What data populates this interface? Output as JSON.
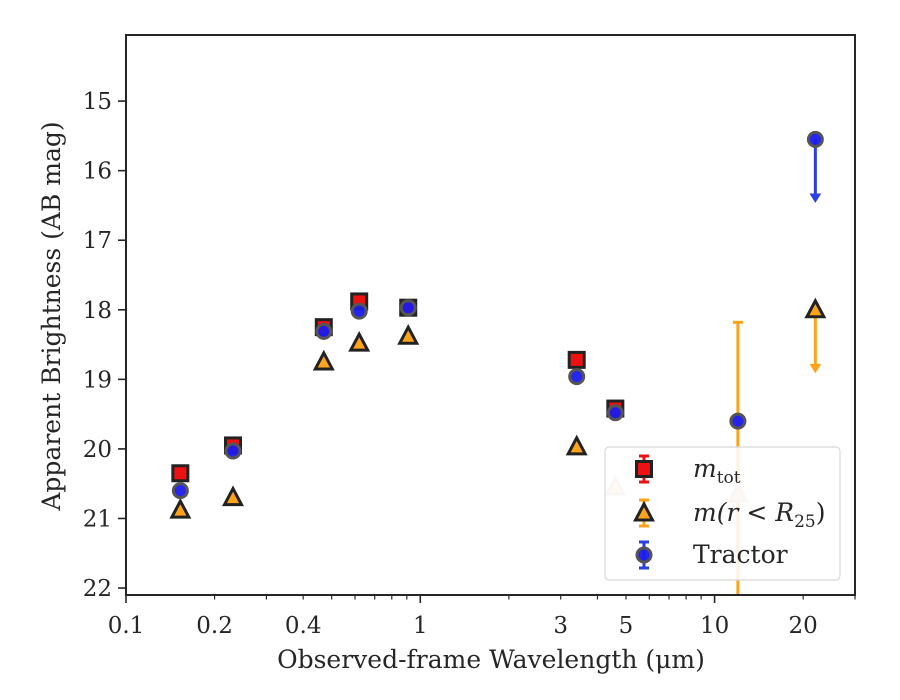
{
  "chart_data": {
    "type": "scatter",
    "xlabel": "Observed-frame Wavelength (μm)",
    "ylabel": "Apparent Brightness (AB mag)",
    "xscale": "log",
    "xlim": [
      0.1,
      30
    ],
    "ylim": [
      22.1,
      14.05
    ],
    "y_inverted": true,
    "x_ticks": [
      0.1,
      0.2,
      0.4,
      1,
      3,
      5,
      10,
      20
    ],
    "x_tick_labels": [
      "0.1",
      "0.2",
      "0.4",
      "1",
      "3",
      "5",
      "10",
      "20"
    ],
    "y_ticks": [
      15,
      16,
      17,
      18,
      19,
      20,
      21,
      22
    ],
    "y_tick_labels": [
      "15",
      "16",
      "17",
      "18",
      "19",
      "20",
      "21",
      "22"
    ],
    "grid": false,
    "legend_position": "lower-right",
    "legend": [
      {
        "label_main": "m",
        "label_sub": "tot",
        "label_rest": "",
        "marker": "square",
        "color": "#ee1111",
        "edge": "#222222",
        "errcolor": "#ee1111"
      },
      {
        "label_main": "m(r < R",
        "label_sub": "25",
        "label_rest": ")",
        "marker": "triangle",
        "color": "#ffa31a",
        "edge": "#222222",
        "errcolor": "#ffa31a"
      },
      {
        "label_main": "Tractor",
        "label_sub": "",
        "label_rest": "",
        "marker": "circle",
        "color": "#1a1aee",
        "edge": "#555555",
        "errcolor": "#2a3fe0"
      }
    ],
    "series": [
      {
        "name": "m_tot",
        "marker": "square",
        "color": "#ee1111",
        "edge": "#222222",
        "points": [
          {
            "x": 0.153,
            "y": 20.35
          },
          {
            "x": 0.231,
            "y": 19.95
          },
          {
            "x": 0.47,
            "y": 18.25
          },
          {
            "x": 0.62,
            "y": 17.88
          },
          {
            "x": 0.91,
            "y": 17.97
          },
          {
            "x": 3.4,
            "y": 18.72
          },
          {
            "x": 4.6,
            "y": 19.42
          }
        ]
      },
      {
        "name": "m(r < R25)",
        "marker": "triangle",
        "color": "#ffa31a",
        "edge": "#222222",
        "points": [
          {
            "x": 0.153,
            "y": 20.88
          },
          {
            "x": 0.231,
            "y": 20.7
          },
          {
            "x": 0.47,
            "y": 18.75
          },
          {
            "x": 0.62,
            "y": 18.48
          },
          {
            "x": 0.91,
            "y": 18.38
          },
          {
            "x": 3.4,
            "y": 19.97
          },
          {
            "x": 4.6,
            "y": 20.55,
            "faded": true
          },
          {
            "x": 12.0,
            "y": 20.65,
            "faded": true,
            "err_top": 18.18,
            "err_bottom": 22.1
          },
          {
            "x": 22.0,
            "y": 18.0,
            "upper_limit_to": 18.9
          }
        ]
      },
      {
        "name": "Tractor",
        "marker": "circle",
        "color": "#1a1aee",
        "edge": "#555555",
        "points": [
          {
            "x": 0.153,
            "y": 20.6
          },
          {
            "x": 0.231,
            "y": 20.03
          },
          {
            "x": 0.47,
            "y": 18.31
          },
          {
            "x": 0.62,
            "y": 18.02
          },
          {
            "x": 0.91,
            "y": 17.97
          },
          {
            "x": 3.4,
            "y": 18.96
          },
          {
            "x": 4.6,
            "y": 19.48
          },
          {
            "x": 12.0,
            "y": 19.6
          },
          {
            "x": 22.0,
            "y": 15.55,
            "upper_limit_to": 16.45
          }
        ]
      }
    ]
  }
}
